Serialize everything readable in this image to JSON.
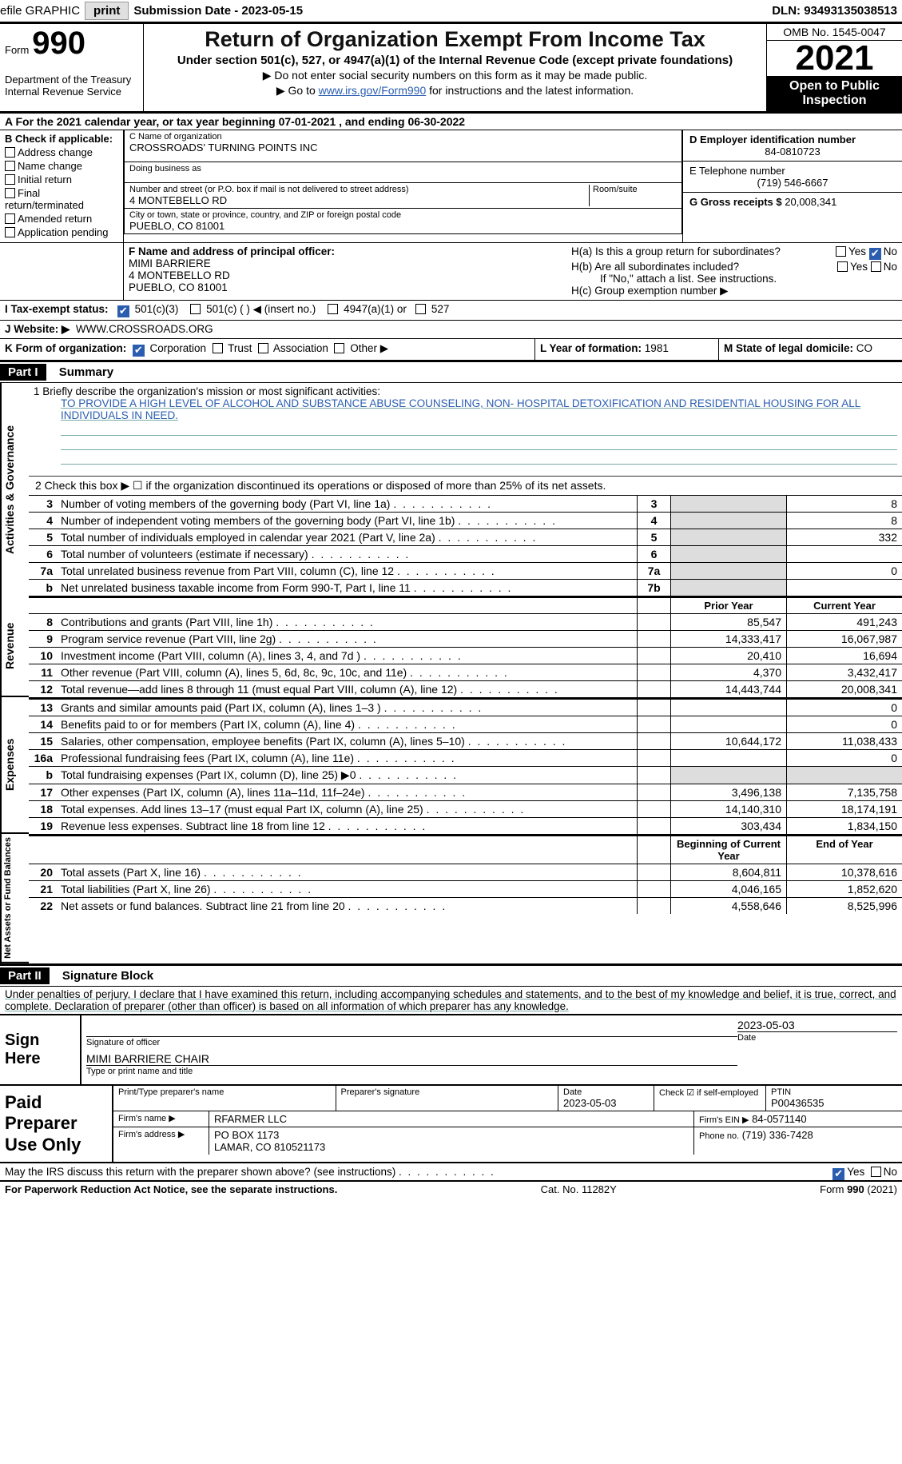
{
  "colors": {
    "link": "#2a5db0",
    "text": "#000000",
    "bg": "#ffffff",
    "black": "#000000",
    "checked": "#2a5db0",
    "gray_cell": "#dddddd",
    "rule_blue": "#77aaaa"
  },
  "top_bar": {
    "efile_label": "efile GRAPHIC",
    "print_btn": "print",
    "sub_date_label": "Submission Date - 2023-05-15",
    "dln": "DLN: 93493135038513"
  },
  "header": {
    "form_word": "Form",
    "form_number": "990",
    "dept": "Department of the Treasury",
    "irs": "Internal Revenue Service",
    "title": "Return of Organization Exempt From Income Tax",
    "subtitle": "Under section 501(c), 527, or 4947(a)(1) of the Internal Revenue Code (except private foundations)",
    "note1": "▶ Do not enter social security numbers on this form as it may be made public.",
    "note2_pre": "▶ Go to ",
    "note2_link": "www.irs.gov/Form990",
    "note2_post": " for instructions and the latest information.",
    "omb": "OMB No. 1545-0047",
    "year": "2021",
    "open": "Open to Public Inspection"
  },
  "row_a": "A For the 2021 calendar year, or tax year beginning 07-01-2021   , and ending 06-30-2022",
  "box_b": {
    "label": "B Check if applicable:",
    "items": [
      "Address change",
      "Name change",
      "Initial return",
      "Final return/terminated",
      "Amended return",
      "Application pending"
    ]
  },
  "box_c": {
    "name_lbl": "C Name of organization",
    "name": "CROSSROADS' TURNING POINTS INC",
    "dba_lbl": "Doing business as",
    "dba": "",
    "addr_lbl": "Number and street (or P.O. box if mail is not delivered to street address)",
    "room_lbl": "Room/suite",
    "addr": "4 MONTEBELLO RD",
    "city_lbl": "City or town, state or province, country, and ZIP or foreign postal code",
    "city": "PUEBLO, CO  81001"
  },
  "box_d": {
    "ein_lbl": "D Employer identification number",
    "ein": "84-0810723",
    "tel_lbl": "E Telephone number",
    "tel": "(719) 546-6667",
    "gross_lbl": "G Gross receipts $",
    "gross": "20,008,341"
  },
  "box_f": {
    "lbl": "F  Name and address of principal officer:",
    "name": "MIMI BARRIERE",
    "addr1": "4 MONTEBELLO RD",
    "addr2": "PUEBLO, CO  81001"
  },
  "box_h": {
    "ha": "H(a)  Is this a group return for subordinates?",
    "ha_yes": "Yes",
    "ha_no_checked": "No",
    "hb": "H(b)  Are all subordinates included?",
    "hb_yes": "Yes",
    "hb_no": "No",
    "hb_note": "If \"No,\" attach a list. See instructions.",
    "hc": "H(c)  Group exemption number ▶"
  },
  "row_i": {
    "lbl": "I   Tax-exempt status:",
    "opt1": "501(c)(3)",
    "opt2": "501(c) (   ) ◀ (insert no.)",
    "opt3": "4947(a)(1) or",
    "opt4": "527"
  },
  "row_j": {
    "lbl": "J   Website: ▶",
    "val": "WWW.CROSSROADS.ORG"
  },
  "row_k": {
    "lbl": "K Form of organization:",
    "opts": [
      "Corporation",
      "Trust",
      "Association",
      "Other ▶"
    ],
    "l_lbl": "L Year of formation:",
    "l_val": "1981",
    "m_lbl": "M State of legal domicile:",
    "m_val": "CO"
  },
  "part1_hdr": "Part I",
  "part1_title": "Summary",
  "sides": {
    "s1": "Activities & Governance",
    "s2": "Revenue",
    "s3": "Expenses",
    "s4": "Net Assets or Fund Balances"
  },
  "mission": {
    "lbl": "1   Briefly describe the organization's mission or most significant activities:",
    "text": "TO PROVIDE A HIGH LEVEL OF ALCOHOL AND SUBSTANCE ABUSE COUNSELING, NON- HOSPITAL DETOXIFICATION AND RESIDENTIAL HOUSING FOR ALL INDIVIDUALS IN NEED."
  },
  "line2": "2   Check this box ▶ ☐  if the organization discontinued its operations or disposed of more than 25% of its net assets.",
  "col_hdr": {
    "prior": "Prior Year",
    "current": "Current Year"
  },
  "col_hdr2": {
    "prior": "Beginning of Current Year",
    "current": "End of Year"
  },
  "gov_lines": [
    {
      "n": "3",
      "t": "Number of voting members of the governing body (Part VI, line 1a)",
      "bx": "3",
      "cur": "8"
    },
    {
      "n": "4",
      "t": "Number of independent voting members of the governing body (Part VI, line 1b)",
      "bx": "4",
      "cur": "8"
    },
    {
      "n": "5",
      "t": "Total number of individuals employed in calendar year 2021 (Part V, line 2a)",
      "bx": "5",
      "cur": "332"
    },
    {
      "n": "6",
      "t": "Total number of volunteers (estimate if necessary)",
      "bx": "6",
      "cur": ""
    },
    {
      "n": "7a",
      "t": "Total unrelated business revenue from Part VIII, column (C), line 12",
      "bx": "7a",
      "cur": "0"
    },
    {
      "n": "b",
      "t": "Net unrelated business taxable income from Form 990-T, Part I, line 11",
      "bx": "7b",
      "cur": ""
    }
  ],
  "rev_lines": [
    {
      "n": "8",
      "t": "Contributions and grants (Part VIII, line 1h)",
      "p": "85,547",
      "c": "491,243"
    },
    {
      "n": "9",
      "t": "Program service revenue (Part VIII, line 2g)",
      "p": "14,333,417",
      "c": "16,067,987"
    },
    {
      "n": "10",
      "t": "Investment income (Part VIII, column (A), lines 3, 4, and 7d )",
      "p": "20,410",
      "c": "16,694"
    },
    {
      "n": "11",
      "t": "Other revenue (Part VIII, column (A), lines 5, 6d, 8c, 9c, 10c, and 11e)",
      "p": "4,370",
      "c": "3,432,417"
    },
    {
      "n": "12",
      "t": "Total revenue—add lines 8 through 11 (must equal Part VIII, column (A), line 12)",
      "p": "14,443,744",
      "c": "20,008,341"
    }
  ],
  "exp_lines": [
    {
      "n": "13",
      "t": "Grants and similar amounts paid (Part IX, column (A), lines 1–3 )",
      "p": "",
      "c": "0"
    },
    {
      "n": "14",
      "t": "Benefits paid to or for members (Part IX, column (A), line 4)",
      "p": "",
      "c": "0"
    },
    {
      "n": "15",
      "t": "Salaries, other compensation, employee benefits (Part IX, column (A), lines 5–10)",
      "p": "10,644,172",
      "c": "11,038,433"
    },
    {
      "n": "16a",
      "t": "Professional fundraising fees (Part IX, column (A), line 11e)",
      "p": "",
      "c": "0"
    },
    {
      "n": "b",
      "t": "Total fundraising expenses (Part IX, column (D), line 25) ▶0",
      "p": "gray",
      "c": "gray"
    },
    {
      "n": "17",
      "t": "Other expenses (Part IX, column (A), lines 11a–11d, 11f–24e)",
      "p": "3,496,138",
      "c": "7,135,758"
    },
    {
      "n": "18",
      "t": "Total expenses. Add lines 13–17 (must equal Part IX, column (A), line 25)",
      "p": "14,140,310",
      "c": "18,174,191"
    },
    {
      "n": "19",
      "t": "Revenue less expenses. Subtract line 18 from line 12",
      "p": "303,434",
      "c": "1,834,150"
    }
  ],
  "net_lines": [
    {
      "n": "20",
      "t": "Total assets (Part X, line 16)",
      "p": "8,604,811",
      "c": "10,378,616"
    },
    {
      "n": "21",
      "t": "Total liabilities (Part X, line 26)",
      "p": "4,046,165",
      "c": "1,852,620"
    },
    {
      "n": "22",
      "t": "Net assets or fund balances. Subtract line 21 from line 20",
      "p": "4,558,646",
      "c": "8,525,996"
    }
  ],
  "part2_hdr": "Part II",
  "part2_title": "Signature Block",
  "penalties": "Under penalties of perjury, I declare that I have examined this return, including accompanying schedules and statements, and to the best of my knowledge and belief, it is true, correct, and complete. Declaration of preparer (other than officer) is based on all information of which preparer has any knowledge.",
  "sign": {
    "here": "Sign Here",
    "date": "2023-05-03",
    "sig_lbl": "Signature of officer",
    "date_lbl": "Date",
    "name": "MIMI BARRIERE  CHAIR",
    "name_lbl": "Type or print name and title"
  },
  "prep": {
    "title": "Paid Preparer Use Only",
    "r1": {
      "c1": "Print/Type preparer's name",
      "c2": "Preparer's signature",
      "c3_lbl": "Date",
      "c3": "2023-05-03",
      "c4": "Check ☑ if self-employed",
      "c5_lbl": "PTIN",
      "c5": "P00436535"
    },
    "r2": {
      "lbl": "Firm's name    ▶",
      "val": "RFARMER LLC",
      "ein_lbl": "Firm's EIN ▶",
      "ein": "84-0571140"
    },
    "r3": {
      "lbl": "Firm's address ▶",
      "val1": "PO BOX 1173",
      "val2": "LAMAR, CO  810521173",
      "ph_lbl": "Phone no.",
      "ph": "(719) 336-7428"
    }
  },
  "may_irs": {
    "q": "May the IRS discuss this return with the preparer shown above? (see instructions)",
    "yes": "Yes",
    "no": "No"
  },
  "footer": {
    "left": "For Paperwork Reduction Act Notice, see the separate instructions.",
    "mid": "Cat. No. 11282Y",
    "right": "Form 990 (2021)"
  }
}
